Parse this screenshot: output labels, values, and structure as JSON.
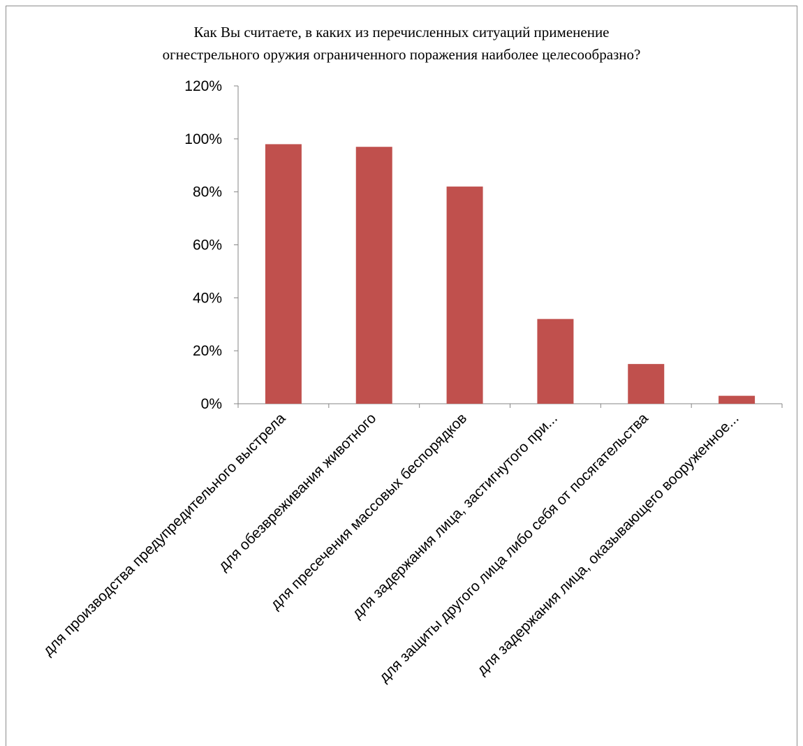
{
  "chart_data": {
    "type": "bar",
    "title_lines": [
      "Как Вы считаете, в каких из перечисленных ситуаций применение",
      "огнестрельного оружия ограниченного поражения наиболее целесообразно?"
    ],
    "categories": [
      "для производства предупредительного выстрела",
      "для обезвреживания животного",
      "для пресечения массовых беспорядков",
      "для задержания лица, застигнутого при...",
      "для защиты другого лица либо себя от посягательства",
      "для задержания лица, оказывающего вооруженное..."
    ],
    "values": [
      98,
      97,
      82,
      32,
      15,
      3
    ],
    "ylim": [
      0,
      120
    ],
    "yticks": [
      "0%",
      "20%",
      "40%",
      "60%",
      "80%",
      "100%",
      "120%"
    ],
    "bar_color": "#c0504d",
    "axis_color": "#868686",
    "grid": false,
    "legend": "none"
  }
}
